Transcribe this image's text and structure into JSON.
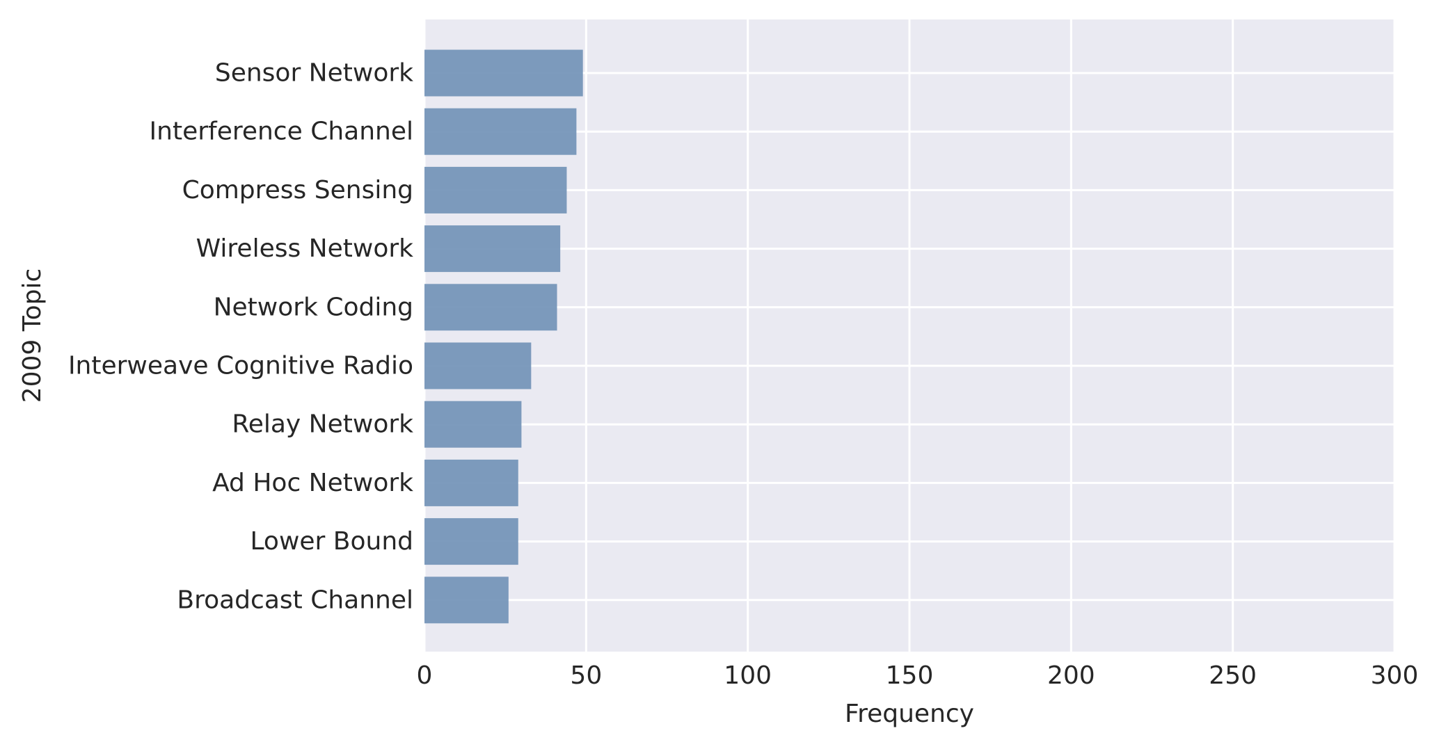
{
  "colors": {
    "plot_background": "#eaeaf2",
    "bar": "#7293b7",
    "grid": "#ffffff",
    "text": "#262626"
  },
  "chart_data": {
    "type": "bar",
    "orientation": "horizontal",
    "title": "",
    "xlabel": "Frequency",
    "ylabel": "2009 Topic",
    "categories": [
      "Sensor Network",
      "Interference Channel",
      "Compress Sensing",
      "Wireless Network",
      "Network Coding",
      "Interweave Cognitive Radio",
      "Relay Network",
      "Ad Hoc Network",
      "Lower Bound",
      "Broadcast Channel"
    ],
    "values": [
      49,
      47,
      44,
      42,
      41,
      33,
      30,
      29,
      29,
      26
    ],
    "xlim": [
      0,
      300
    ],
    "xticks": [
      0,
      50,
      100,
      150,
      200,
      250,
      300
    ],
    "grid": true
  }
}
